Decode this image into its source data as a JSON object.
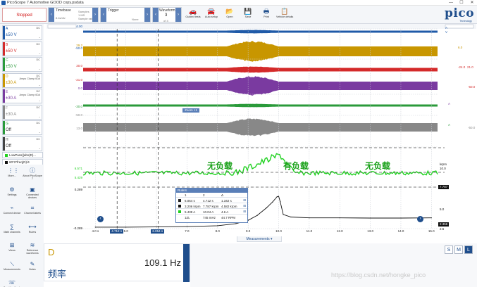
{
  "window": {
    "title": "PicoScope 7 Automotive GOOD copy.psdata",
    "controls": [
      "—",
      "☐",
      "✕"
    ]
  },
  "toolbar": {
    "status": "Stopped",
    "timebase": {
      "label": "Timebase",
      "value": "8.4s/div",
      "samples_label": "Samples",
      "samples_value": "1 MS",
      "rate_label": "Sample rate",
      "rate_value": "50 kS/s"
    },
    "trigger": {
      "label": "Trigger",
      "mode": "None"
    },
    "waveform": {
      "label": "Waveform",
      "value": "3",
      "of": "of 4"
    },
    "buttons": [
      {
        "name": "guided-tests-button",
        "icon": "car-icon",
        "glyph": "🚗",
        "label": "Guided tests"
      },
      {
        "name": "auto-setup-button",
        "icon": "car-setup-icon",
        "glyph": "🚘",
        "label": "Auto setup"
      },
      {
        "name": "open-button",
        "icon": "folder-icon",
        "glyph": "📂",
        "label": "Open"
      },
      {
        "name": "save-button",
        "icon": "save-icon",
        "glyph": "💾",
        "label": "Save"
      },
      {
        "name": "print-button",
        "icon": "print-icon",
        "glyph": "🖶",
        "label": "Print"
      },
      {
        "name": "vehicle-details-button",
        "icon": "clipboard-icon",
        "glyph": "📋",
        "label": "Vehicle details"
      }
    ],
    "logo": {
      "text": "pico",
      "sub": "Technology"
    }
  },
  "channels": [
    {
      "id": "A",
      "range": "±50 V",
      "coupling": "DC",
      "color": "#1f5aa8",
      "info": ""
    },
    {
      "id": "B",
      "range": "±50 V",
      "coupling": "DC",
      "color": "#d42a2a",
      "info": ""
    },
    {
      "id": "C",
      "range": "±50 V",
      "coupling": "DC",
      "color": "#2a9a3a",
      "info": ""
    },
    {
      "id": "D",
      "range": "±30 A",
      "coupling": "DC",
      "color": "#c89600",
      "info": "Amps Clamp 60A"
    },
    {
      "id": "E",
      "range": "±30 A",
      "coupling": "DC",
      "color": "#7a3aa0",
      "info": "Amps Clamp 60A"
    },
    {
      "id": "F",
      "range": "±30 A",
      "coupling": "DC",
      "color": "#888888",
      "info": ""
    },
    {
      "id": "G",
      "range": "Off",
      "coupling": "DC",
      "color": "#2a9a3a",
      "info": ""
    },
    {
      "id": "H",
      "range": "Off",
      "coupling": "DC",
      "color": "#444444",
      "info": ""
    }
  ],
  "math": [
    {
      "label": "LowPass(|abs(D)...",
      "color": "#1fd11f"
    },
    {
      "label": "60*2*freq(D)/4",
      "color": "#111111"
    }
  ],
  "tools": [
    {
      "name": "more-button",
      "icon": "grid-icon",
      "glyph": "⋮⋮",
      "label": "More..."
    },
    {
      "name": "about-button",
      "icon": "info-icon",
      "glyph": "ⓘ",
      "label": "About PicoScope 7"
    },
    {
      "name": "settings-button",
      "icon": "gear-icon",
      "glyph": "⚙",
      "label": "Settings"
    },
    {
      "name": "connected-devices-button",
      "icon": "device-icon",
      "glyph": "▣",
      "label": "Connected devices"
    },
    {
      "name": "connect-device-button",
      "icon": "plug-icon",
      "glyph": "⌁",
      "label": "Connect device"
    },
    {
      "name": "channel-labels-button",
      "icon": "label-icon",
      "glyph": "⌗",
      "label": "Channel labels"
    },
    {
      "name": "math-channels-button",
      "icon": "math-icon",
      "glyph": "∑",
      "label": "Math channels"
    },
    {
      "name": "rulers-button",
      "icon": "ruler-icon",
      "glyph": "⟷",
      "label": "Rulers"
    },
    {
      "name": "views-button",
      "icon": "views-icon",
      "glyph": "⊞",
      "label": "Views"
    },
    {
      "name": "reference-waveforms-button",
      "icon": "reference-icon",
      "glyph": "≋",
      "label": "Reference waveforms"
    },
    {
      "name": "measurements-button",
      "icon": "measure-icon",
      "glyph": "⟍",
      "label": "Measurements"
    },
    {
      "name": "notes-button",
      "icon": "notes-icon",
      "glyph": "✎",
      "label": "Notes"
    },
    {
      "name": "send-feedback-button",
      "icon": "feedback-icon",
      "glyph": "☏",
      "label": "Send feedback"
    }
  ],
  "scope": {
    "left_axis": [
      {
        "label": "4.00",
        "color": "#1f5aa8"
      },
      {
        "label": "-50.0",
        "color": "#1f5aa8"
      },
      {
        "label": "29.2",
        "color": "#c89600"
      },
      {
        "label": "30.0",
        "color": "#d42a2a"
      },
      {
        "label": "-21.0",
        "color": "#d42a2a"
      },
      {
        "label": "0.0",
        "color": "#7a3aa0"
      },
      {
        "label": "-30.0",
        "color": "#2a9a3a"
      },
      {
        "label": "-50.0",
        "color": "#888888"
      },
      {
        "label": "13.0",
        "color": "#888888"
      },
      {
        "label": "6.571",
        "color": "#1fd11f"
      },
      {
        "label": "5.429",
        "color": "#1fd11f"
      },
      {
        "label": "0.289",
        "color": "#111111"
      },
      {
        "label": "-0.289",
        "color": "#111111"
      }
    ],
    "right_axis": [
      {
        "label": "A",
        "color": "#1f5aa8"
      },
      {
        "label": "V",
        "color": "#1f5aa8"
      },
      {
        "label": "6.0",
        "color": "#c89600"
      },
      {
        "label": "-24.0",
        "color": "#d42a2a"
      },
      {
        "label": "21.0",
        "color": "#d42a2a"
      },
      {
        "label": "-50.0",
        "color": "#d42a2a"
      },
      {
        "label": "A",
        "color": "#7a3aa0"
      },
      {
        "label": "A",
        "color": "#2a9a3a"
      },
      {
        "label": "-50.0",
        "color": "#888888"
      },
      {
        "label": "krpm",
        "color": "#111111"
      },
      {
        "label": "10.0",
        "color": "#111111"
      },
      {
        "label": "5.0",
        "color": "#111111"
      },
      {
        "label": "2.5",
        "color": "#111111"
      }
    ],
    "time_axis": [
      "4.0 s",
      "5.0",
      "6.0",
      "7.0",
      "8.0",
      "9.0",
      "10.0",
      "11.0",
      "12.0",
      "13.0",
      "14.0",
      "15.0"
    ],
    "cursors": [
      "4.712 s",
      "6.054 s"
    ],
    "zoom_tag": "Zoom ×1",
    "rpm_badge": "7.787",
    "rpm_badge2": "2.356",
    "annotations": [
      "无负载",
      "有负载",
      "无负载"
    ],
    "ruler_table": {
      "title": "Rulers",
      "header": [
        "",
        "1",
        "2",
        "Δ"
      ],
      "rows": [
        [
          "",
          "6.054 s",
          "4.712 s",
          "1.342 s"
        ],
        [
          "",
          "3.206 krpm",
          "7.787 krpm",
          "4.582 krpm"
        ],
        [
          "",
          "5.439 A",
          "10.04 A",
          "4.6 A"
        ]
      ],
      "footer": [
        "1/Δ",
        "745 mHz",
        "44.7 RPM"
      ]
    }
  },
  "measurements": {
    "tab": "Measurements ▾",
    "channel": "D",
    "value": "109.1 Hz",
    "name": "频率"
  },
  "sizes": [
    "S",
    "M",
    "L"
  ],
  "watermark": "https://blog.csdn.net/hongke_pico",
  "chart_data": {
    "type": "line",
    "title": "",
    "xlabel": "",
    "ylabel": "",
    "x_range": [
      3.6,
      15.2
    ],
    "x_unit": "s",
    "series": [
      {
        "name": "60*2*freq(D)/4",
        "color": "#111111",
        "y_unit": "krpm",
        "x": [
          4.0,
          5.0,
          6.0,
          7.0,
          8.0,
          8.6,
          9.0,
          9.3,
          9.6,
          9.8,
          9.95,
          10.0,
          10.05,
          10.15,
          10.4,
          11.0,
          12.0,
          13.0,
          14.0,
          15.0
        ],
        "y": [
          0.35,
          0.35,
          0.4,
          0.5,
          0.7,
          1.2,
          2.0,
          3.2,
          5.0,
          6.4,
          7.7,
          7.8,
          6.5,
          3.4,
          2.8,
          2.6,
          2.6,
          2.55,
          2.55,
          2.6
        ]
      }
    ]
  }
}
